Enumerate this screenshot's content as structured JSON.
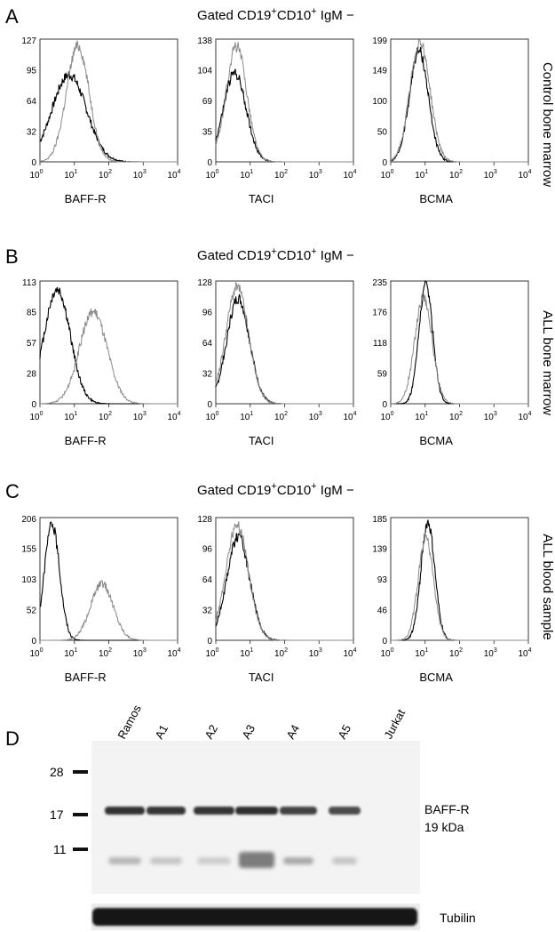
{
  "panels": [
    {
      "letter": "A",
      "title_base": "Gated CD19",
      "title_sup1": "+",
      "title_mid": "CD10",
      "title_sup2": "+",
      "title_tail": " IgM −",
      "side_label": "Control bone marrow"
    },
    {
      "letter": "B",
      "title_base": "Gated CD19",
      "title_sup1": "+",
      "title_mid": "CD10",
      "title_sup2": "+",
      "title_tail": " IgM −",
      "side_label": "ALL bone marrow"
    },
    {
      "letter": "C",
      "title_base": "Gated CD19",
      "title_sup1": "+",
      "title_mid": "CD10",
      "title_sup2": "+",
      "title_tail": " IgM −",
      "side_label": "ALL blood sample"
    }
  ],
  "x_ticks": [
    "10",
    "10",
    "10",
    "10",
    "10"
  ],
  "x_tick_exps": [
    "0",
    "1",
    "2",
    "3",
    "4"
  ],
  "chart_data": [
    {
      "type": "line",
      "panel": "A",
      "xlabel": "BAFF-R",
      "x_scale": "log",
      "xlim": [
        1,
        10000
      ],
      "ylim": [
        0,
        127
      ],
      "y_ticks": [
        "127",
        "95",
        "64",
        "32",
        "0"
      ],
      "series": [
        {
          "color": "#000000",
          "peak_log": 0.85,
          "spread": 0.5,
          "peak_value": 90
        },
        {
          "color": "#8a8a8a",
          "peak_log": 1.1,
          "spread": 0.33,
          "peak_value": 120
        }
      ]
    },
    {
      "type": "line",
      "panel": "A",
      "xlabel": "TACI",
      "x_scale": "log",
      "xlim": [
        1,
        10000
      ],
      "ylim": [
        0,
        138
      ],
      "y_ticks": [
        "138",
        "104",
        "69",
        "35",
        "0"
      ],
      "series": [
        {
          "color": "#000000",
          "peak_log": 0.55,
          "spread": 0.33,
          "peak_value": 100
        },
        {
          "color": "#8a8a8a",
          "peak_log": 0.6,
          "spread": 0.3,
          "peak_value": 130
        }
      ]
    },
    {
      "type": "line",
      "panel": "A",
      "xlabel": "BCMA",
      "x_scale": "log",
      "xlim": [
        1,
        10000
      ],
      "ylim": [
        0,
        199
      ],
      "y_ticks": [
        "199",
        "149",
        "100",
        "50",
        "0"
      ],
      "series": [
        {
          "color": "#000000",
          "peak_log": 0.82,
          "spread": 0.27,
          "peak_value": 180
        },
        {
          "color": "#8a8a8a",
          "peak_log": 0.85,
          "spread": 0.29,
          "peak_value": 195
        }
      ]
    },
    {
      "type": "line",
      "panel": "B",
      "xlabel": "BAFF-R",
      "x_scale": "log",
      "xlim": [
        1,
        10000
      ],
      "ylim": [
        0,
        113
      ],
      "y_ticks": [
        "113",
        "85",
        "57",
        "28",
        "0"
      ],
      "series": [
        {
          "color": "#000000",
          "peak_log": 0.5,
          "spread": 0.38,
          "peak_value": 105
        },
        {
          "color": "#8a8a8a",
          "peak_log": 1.55,
          "spread": 0.4,
          "peak_value": 85
        }
      ]
    },
    {
      "type": "line",
      "panel": "B",
      "xlabel": "TACI",
      "x_scale": "log",
      "xlim": [
        1,
        10000
      ],
      "ylim": [
        0,
        128
      ],
      "y_ticks": [
        "128",
        "96",
        "64",
        "32",
        "0"
      ],
      "series": [
        {
          "color": "#000000",
          "peak_log": 0.65,
          "spread": 0.33,
          "peak_value": 110
        },
        {
          "color": "#8a8a8a",
          "peak_log": 0.62,
          "spread": 0.33,
          "peak_value": 122
        }
      ]
    },
    {
      "type": "line",
      "panel": "B",
      "xlabel": "BCMA",
      "x_scale": "log",
      "xlim": [
        1,
        10000
      ],
      "ylim": [
        0,
        235
      ],
      "y_ticks": [
        "235",
        "176",
        "118",
        "59",
        "0"
      ],
      "series": [
        {
          "color": "#000000",
          "peak_log": 1.02,
          "spread": 0.2,
          "peak_value": 230
        },
        {
          "color": "#8a8a8a",
          "peak_log": 0.95,
          "spread": 0.25,
          "peak_value": 205
        }
      ]
    },
    {
      "type": "line",
      "panel": "C",
      "xlabel": "BAFF-R",
      "x_scale": "log",
      "xlim": [
        1,
        10000
      ],
      "ylim": [
        0,
        206
      ],
      "y_ticks": [
        "206",
        "155",
        "103",
        "52",
        "0"
      ],
      "series": [
        {
          "color": "#000000",
          "peak_log": 0.35,
          "spread": 0.22,
          "peak_value": 195
        },
        {
          "color": "#8a8a8a",
          "peak_log": 1.8,
          "spread": 0.33,
          "peak_value": 95
        }
      ]
    },
    {
      "type": "line",
      "panel": "C",
      "xlabel": "TACI",
      "x_scale": "log",
      "xlim": [
        1,
        10000
      ],
      "ylim": [
        0,
        128
      ],
      "y_ticks": [
        "128",
        "96",
        "64",
        "32",
        "0"
      ],
      "series": [
        {
          "color": "#000000",
          "peak_log": 0.65,
          "spread": 0.33,
          "peak_value": 108
        },
        {
          "color": "#8a8a8a",
          "peak_log": 0.62,
          "spread": 0.33,
          "peak_value": 120
        }
      ]
    },
    {
      "type": "line",
      "panel": "C",
      "xlabel": "BCMA",
      "x_scale": "log",
      "xlim": [
        1,
        10000
      ],
      "ylim": [
        0,
        185
      ],
      "y_ticks": [
        "185",
        "139",
        "93",
        "46",
        "0"
      ],
      "series": [
        {
          "color": "#000000",
          "peak_log": 1.08,
          "spread": 0.2,
          "peak_value": 178
        },
        {
          "color": "#8a8a8a",
          "peak_log": 1.02,
          "spread": 0.22,
          "peak_value": 155
        }
      ]
    }
  ],
  "blot": {
    "letter": "D",
    "lanes": [
      "Ramos",
      "A1",
      "A2",
      "A3",
      "A4",
      "A5",
      "Jurkat"
    ],
    "markers": [
      "28",
      "17",
      "11"
    ],
    "band_label": "BAFF-R",
    "band_size": "19 kDa",
    "loading_label": "Tubilin",
    "baffr_intensity": [
      0.9,
      0.85,
      0.85,
      0.95,
      0.7,
      0.6,
      0.0
    ],
    "low_band_intensity": [
      0.35,
      0.25,
      0.2,
      0.75,
      0.45,
      0.25,
      0.0
    ]
  }
}
